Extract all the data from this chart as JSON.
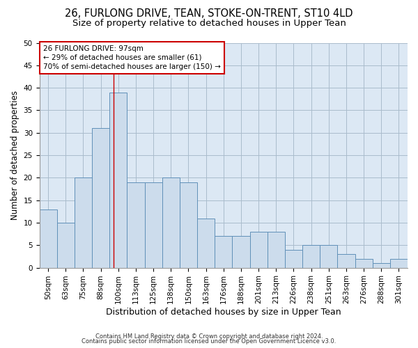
{
  "title1": "26, FURLONG DRIVE, TEAN, STOKE-ON-TRENT, ST10 4LD",
  "title2": "Size of property relative to detached houses in Upper Tean",
  "xlabel": "Distribution of detached houses by size in Upper Tean",
  "ylabel": "Number of detached properties",
  "categories": [
    "50sqm",
    "63sqm",
    "75sqm",
    "88sqm",
    "100sqm",
    "113sqm",
    "125sqm",
    "138sqm",
    "150sqm",
    "163sqm",
    "176sqm",
    "188sqm",
    "201sqm",
    "213sqm",
    "226sqm",
    "238sqm",
    "251sqm",
    "263sqm",
    "276sqm",
    "288sqm",
    "301sqm"
  ],
  "values": [
    13,
    10,
    20,
    31,
    39,
    19,
    19,
    20,
    19,
    11,
    7,
    7,
    8,
    8,
    4,
    5,
    5,
    3,
    2,
    1,
    2
  ],
  "bar_color": "#ccdcec",
  "bar_edge_color": "#6090b8",
  "grid_color": "#aabccc",
  "bg_color": "#dce8f4",
  "red_line_x": 3.75,
  "annotation_line1": "26 FURLONG DRIVE: 97sqm",
  "annotation_line2": "← 29% of detached houses are smaller (61)",
  "annotation_line3": "70% of semi-detached houses are larger (150) →",
  "annotation_box_color": "#ffffff",
  "annotation_border_color": "#cc0000",
  "footer1": "Contains HM Land Registry data © Crown copyright and database right 2024.",
  "footer2": "Contains public sector information licensed under the Open Government Licence v3.0.",
  "ylim": [
    0,
    50
  ],
  "yticks": [
    0,
    5,
    10,
    15,
    20,
    25,
    30,
    35,
    40,
    45,
    50
  ],
  "title1_fontsize": 10.5,
  "title2_fontsize": 9.5,
  "xlabel_fontsize": 9,
  "ylabel_fontsize": 8.5,
  "tick_fontsize": 7.5,
  "footer_fontsize": 6.0,
  "annot_fontsize": 7.5
}
